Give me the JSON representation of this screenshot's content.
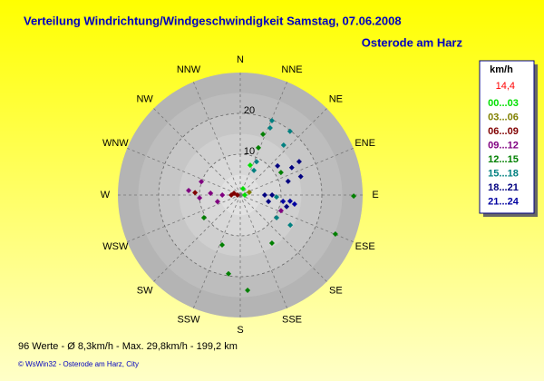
{
  "chart_data": {
    "type": "polar-scatter",
    "title": "Verteilung Windrichtung/Windgeschwindigkeit  Samstag, 07.06.2008",
    "subtitle": "Osterode am Harz",
    "legend_title": "km/h",
    "current": "14,4",
    "directions": [
      "N",
      "NNE",
      "NE",
      "ENE",
      "E",
      "ESE",
      "SE",
      "SSE",
      "S",
      "SSW",
      "SW",
      "WSW",
      "W",
      "WNW",
      "NW",
      "NNW"
    ],
    "rlim": [
      0,
      30
    ],
    "rticks": [
      10,
      20
    ],
    "series": [
      {
        "name": "00...03",
        "color": "#00e000",
        "theta": [
          90,
          23,
          18.4
        ],
        "r": [
          1.1,
          1.7,
          7.7
        ]
      },
      {
        "name": "03...06",
        "color": "#808000",
        "theta": [
          73
        ],
        "r": [
          2.3
        ]
      },
      {
        "name": "06...09",
        "color": "#800000",
        "theta": [
          286,
          270,
          270,
          273
        ],
        "r": [
          1.6,
          0.7,
          2.2,
          11.1
        ]
      },
      {
        "name": "09...12",
        "color": "#800080",
        "theta": [
          270,
          273.5,
          266,
          275,
          254,
          289,
          111
        ],
        "r": [
          4.4,
          7.3,
          10,
          12.7,
          5.8,
          10.1,
          10.7
        ]
      },
      {
        "name": "12...15",
        "color": "#008000",
        "theta": [
          90.5,
          112.3,
          188.5,
          175.6,
          20.5,
          21,
          61,
          238,
          200,
          146.6
        ],
        "r": [
          27.8,
          25.2,
          19.5,
          23.4,
          15.9,
          12.4,
          11.4,
          10.5,
          13,
          14.1
        ]
      },
      {
        "name": "15...18",
        "color": "#008080",
        "theta": [
          23.1,
          24,
          38,
          41,
          93,
          29,
          26,
          121,
          122
        ],
        "r": [
          19.8,
          18,
          19.8,
          16.2,
          8.9,
          6.9,
          9.1,
          14.3,
          10.5
        ]
      },
      {
        "name": "18...21",
        "color": "#000080",
        "theta": [
          60.4,
          62,
          73,
          52,
          74,
          90,
          104,
          103,
          90
        ],
        "r": [
          16.6,
          14.3,
          15.5,
          11.6,
          12.2,
          7.8,
          11.7,
          7.1,
          6
        ]
      },
      {
        "name": "21...24",
        "color": "#0000a0",
        "theta": [
          98.5,
          97,
          99.5
        ],
        "r": [
          10.6,
          12.3,
          13.5
        ]
      }
    ],
    "footer": "96 Werte   -   Ø 8,3km/h   -   Max. 29,8km/h   -   199,2 km",
    "copyright": "© WsWin32  -  Osterode am Harz, City"
  }
}
